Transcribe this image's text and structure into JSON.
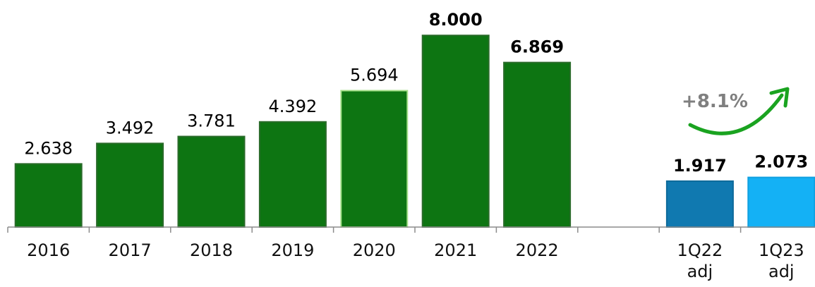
{
  "chart_data": {
    "type": "bar",
    "categories": [
      "2016",
      "2017",
      "2018",
      "2019",
      "2020",
      "2021",
      "2022",
      "",
      "1Q22\nadj",
      "1Q23\nadj"
    ],
    "values": [
      2.638,
      3.492,
      3.781,
      4.392,
      5.694,
      8.0,
      6.869,
      null,
      1.917,
      2.073
    ],
    "value_labels": [
      "2.638",
      "3.492",
      "3.781",
      "4.392",
      "5.694",
      "8.000",
      "6.869",
      "",
      "1.917",
      "2.073"
    ],
    "bold_labels": [
      false,
      false,
      false,
      false,
      false,
      true,
      true,
      false,
      true,
      true
    ],
    "colors": [
      "#0d7512",
      "#0d7512",
      "#0d7512",
      "#0d7512",
      "#0d7512",
      "#0d7512",
      "#0d7512",
      "",
      "#1079b0",
      "#14b1f5"
    ],
    "border_colors": [
      "#2a6b2a",
      "#2a6b2a",
      "#2a6b2a",
      "#2a6b2a",
      "#a6e08a",
      "#2a6b2a",
      "#2a6b2a",
      "",
      "#0d6a9a",
      "#10a0e0"
    ],
    "annotation": {
      "text": "+8.1%",
      "arrow_color": "#1aa320"
    },
    "ylim": [
      0,
      8.3
    ],
    "grid": false,
    "legend": "none"
  }
}
